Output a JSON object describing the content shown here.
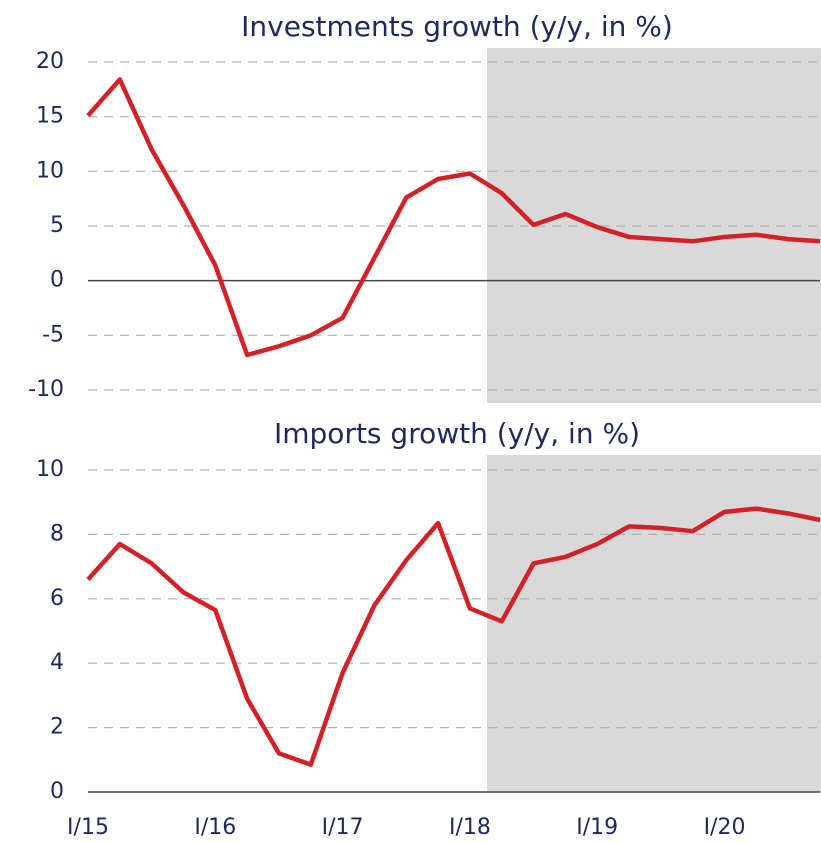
{
  "chart_data": [
    {
      "type": "line",
      "title": "Investments growth (y/y, in %)",
      "series": [
        {
          "name": "Investments",
          "color": "#d42027",
          "values": [
            15.1,
            18.4,
            12.0,
            6.9,
            1.4,
            -6.8,
            -6.0,
            -5.0,
            -3.4,
            2.1,
            7.6,
            9.3,
            9.8,
            8.0,
            5.1,
            6.1,
            4.9,
            4.0,
            3.8,
            3.6,
            4.0,
            4.2,
            3.8,
            3.6
          ]
        }
      ],
      "ylim": [
        -10,
        20
      ],
      "yticks": [
        -10,
        -5,
        0,
        5,
        10,
        15,
        20
      ],
      "grid": true
    },
    {
      "type": "line",
      "title": "Imports growth (y/y, in %)",
      "categories": [
        "I/15",
        null,
        null,
        null,
        "I/16",
        null,
        null,
        null,
        "I/17",
        null,
        null,
        null,
        "I/18",
        null,
        null,
        null,
        "I/19",
        null,
        null,
        null,
        "I/20",
        null,
        null,
        null
      ],
      "series": [
        {
          "name": "Imports",
          "color": "#d42027",
          "values": [
            6.6,
            7.7,
            7.1,
            6.2,
            5.65,
            2.9,
            1.2,
            0.85,
            3.7,
            5.8,
            7.2,
            8.35,
            5.7,
            5.3,
            7.1,
            7.3,
            7.7,
            8.25,
            8.2,
            8.1,
            8.7,
            8.8,
            8.65,
            8.45
          ]
        }
      ],
      "ylim": [
        0,
        10
      ],
      "yticks": [
        0,
        2,
        4,
        6,
        8,
        10
      ],
      "grid": true
    }
  ]
}
